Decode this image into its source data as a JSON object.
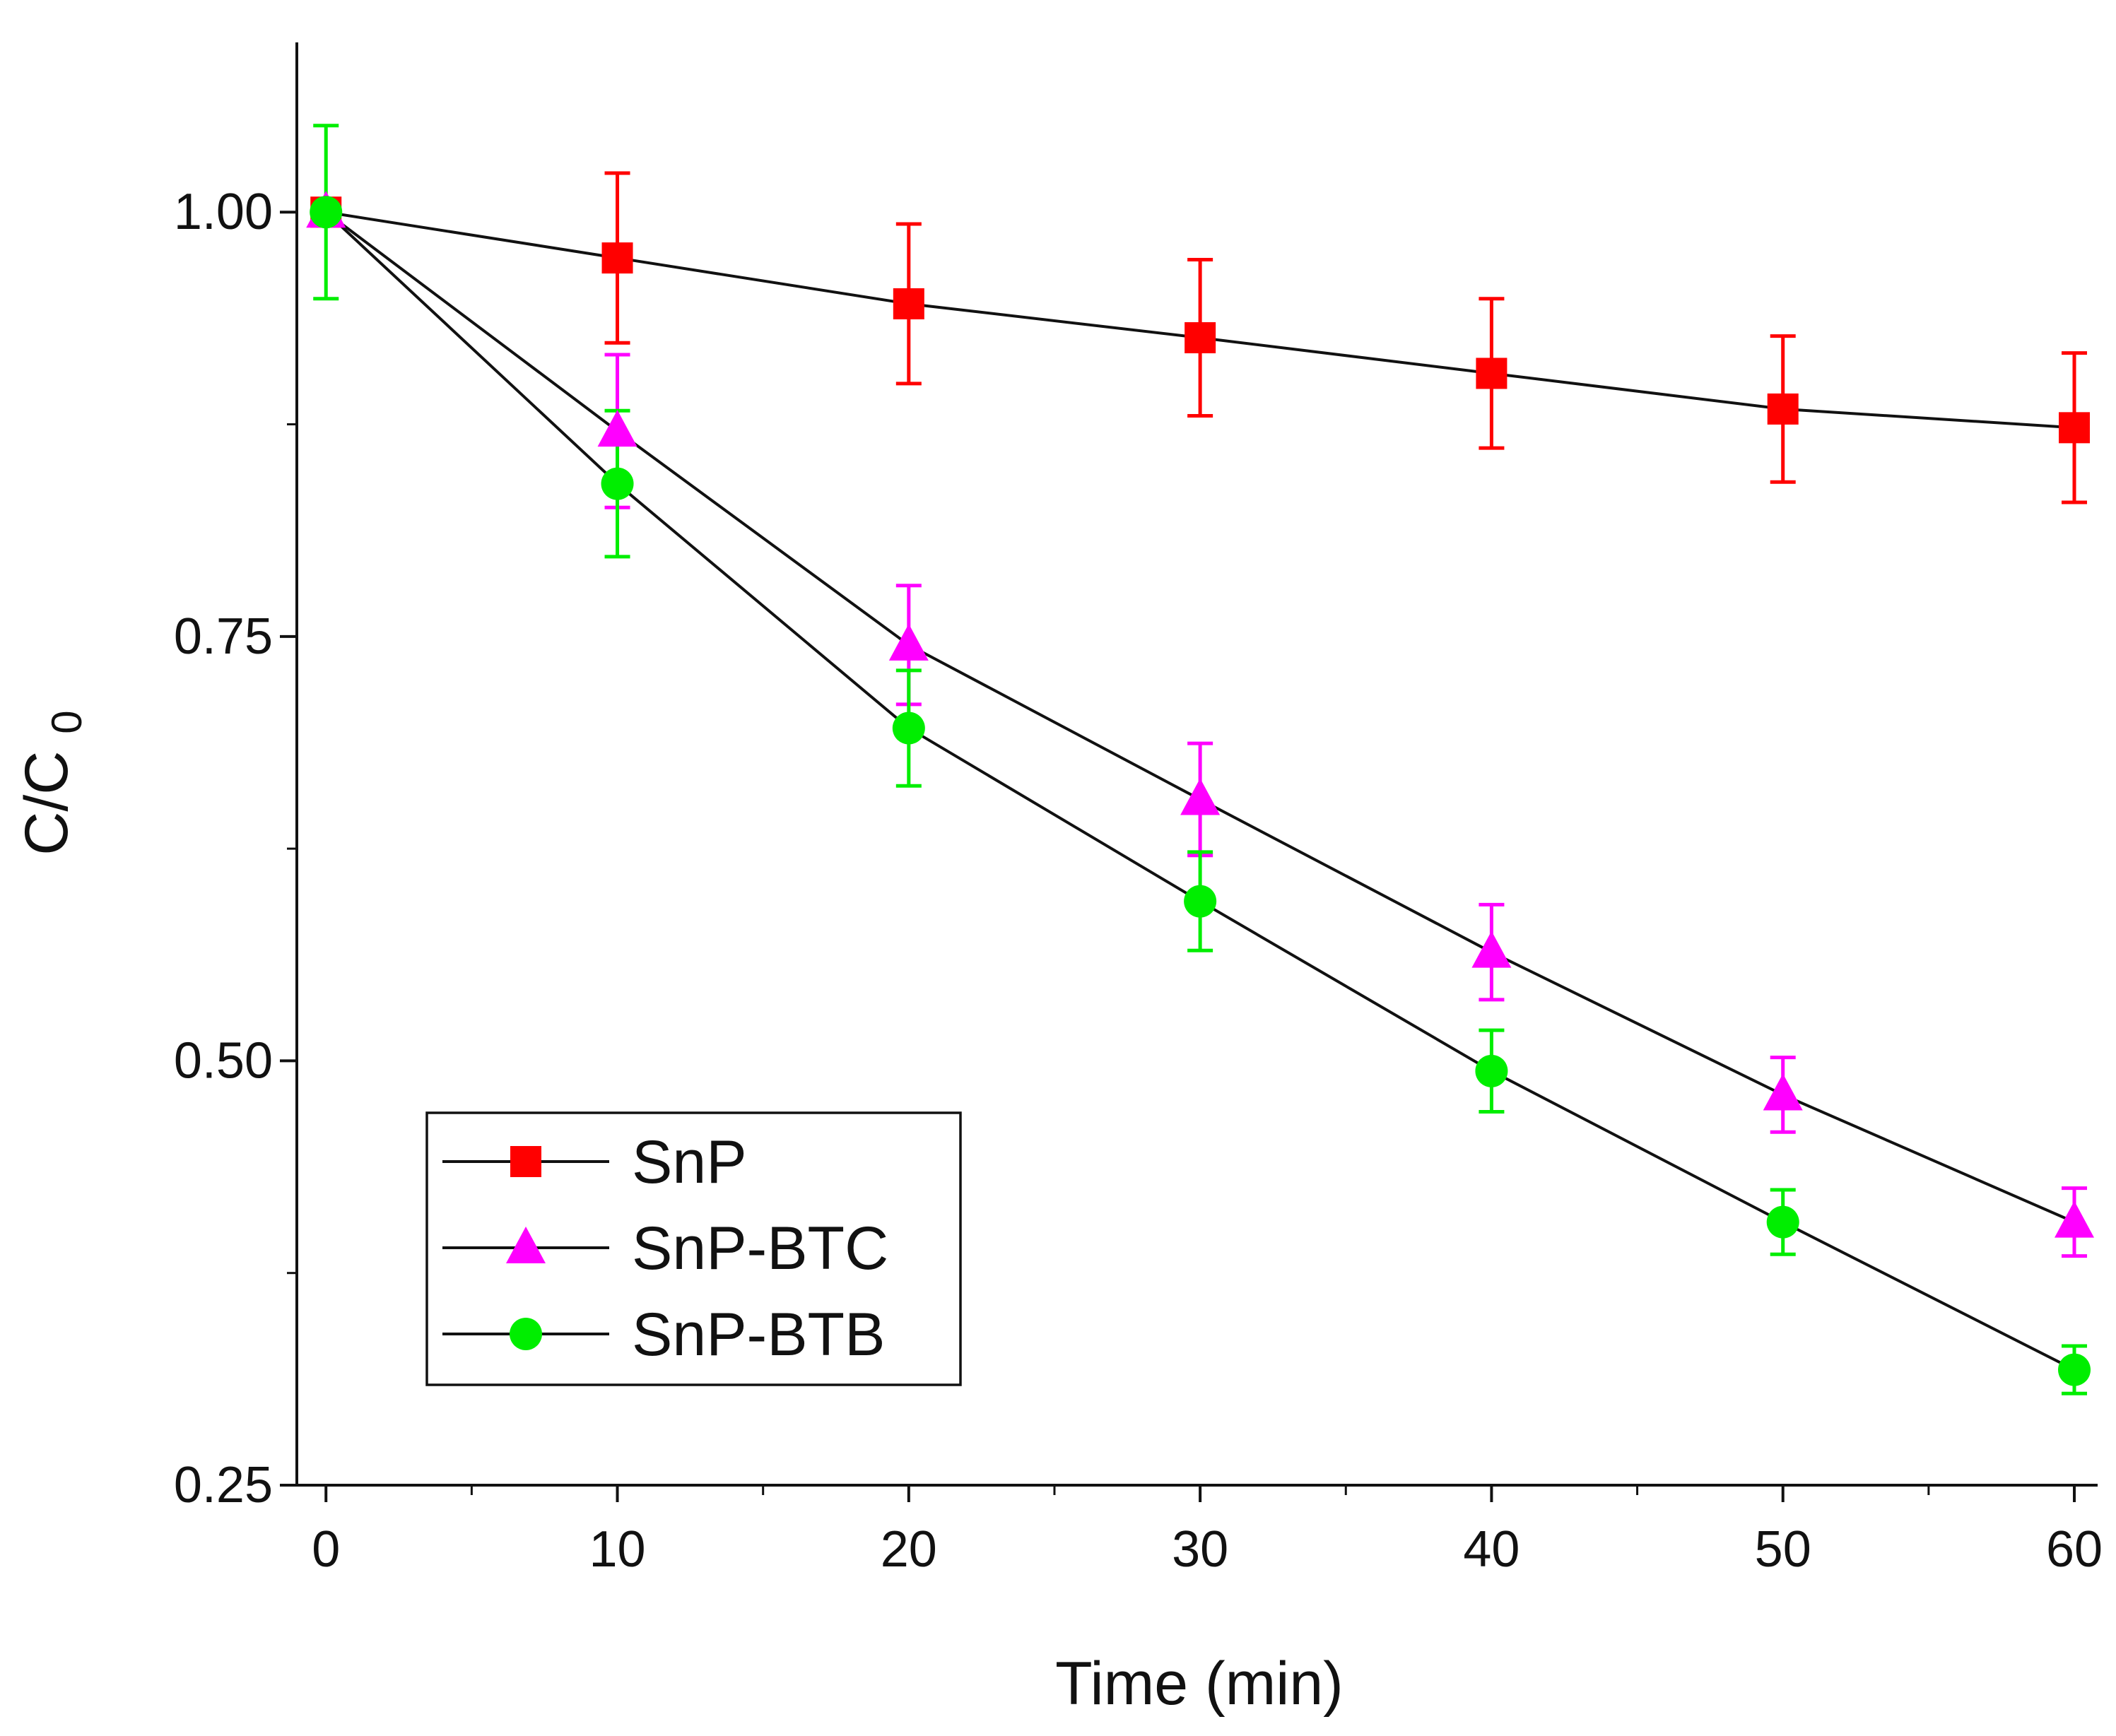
{
  "chart_data": {
    "type": "line",
    "title": "",
    "xlabel": "Time (min)",
    "ylabel": "C/C",
    "ylabel_subscript": "0",
    "xlim": [
      -1,
      60.8
    ],
    "ylim": [
      0.25,
      1.1
    ],
    "xticks": [
      0,
      10,
      20,
      30,
      40,
      50,
      60
    ],
    "xtick_labels": [
      "0",
      "10",
      "20",
      "30",
      "40",
      "50",
      "60"
    ],
    "yticks": [
      0.25,
      0.5,
      0.75,
      1.0
    ],
    "ytick_labels": [
      "0.25",
      "0.50",
      "0.75",
      "1.00"
    ],
    "legend_position": "bottom-left",
    "x": [
      0,
      10,
      20,
      30,
      40,
      50,
      60
    ],
    "series": [
      {
        "name": "SnP",
        "marker": "square",
        "color": "#ff0000",
        "values": [
          1.0,
          0.973,
          0.946,
          0.926,
          0.905,
          0.884,
          0.873
        ],
        "errors": [
          0.0,
          0.05,
          0.047,
          0.046,
          0.044,
          0.043,
          0.044
        ]
      },
      {
        "name": "SnP-BTC",
        "marker": "triangle",
        "color": "#ff00ff",
        "values": [
          1.0,
          0.871,
          0.745,
          0.654,
          0.564,
          0.48,
          0.405
        ],
        "errors": [
          0.0,
          0.045,
          0.035,
          0.033,
          0.028,
          0.022,
          0.02
        ]
      },
      {
        "name": "SnP-BTB",
        "marker": "circle",
        "color": "#00ee00",
        "values": [
          1.0,
          0.84,
          0.696,
          0.594,
          0.494,
          0.405,
          0.318
        ],
        "errors": [
          0.051,
          0.043,
          0.034,
          0.029,
          0.024,
          0.019,
          0.014
        ]
      }
    ]
  }
}
